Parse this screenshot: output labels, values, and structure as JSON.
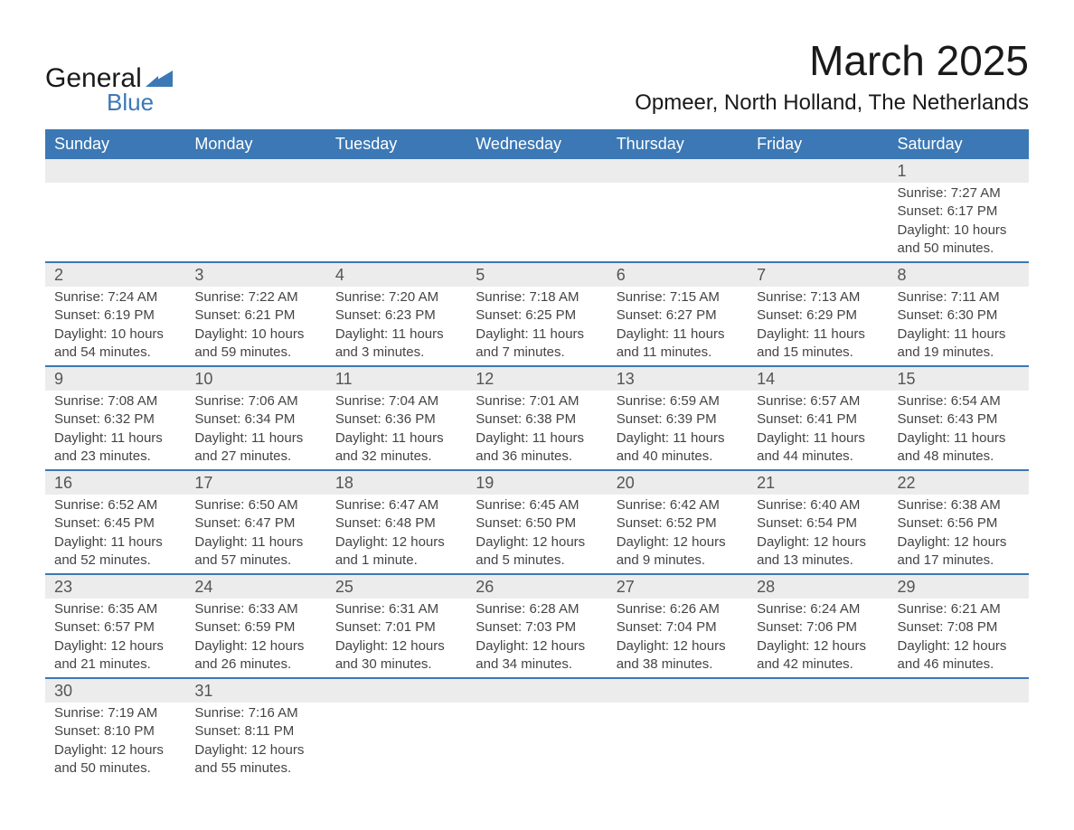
{
  "brand": {
    "name1": "General",
    "name2": "Blue",
    "logo_color": "#3b78b5",
    "text_color": "#1a1a1a"
  },
  "title": "March 2025",
  "location": "Opmeer, North Holland, The Netherlands",
  "colors": {
    "header_bg": "#3b78b5",
    "header_text": "#ffffff",
    "daybar_bg": "#ececec",
    "daybar_border": "#3b78b5",
    "body_text": "#444444",
    "page_bg": "#ffffff"
  },
  "day_headers": [
    "Sunday",
    "Monday",
    "Tuesday",
    "Wednesday",
    "Thursday",
    "Friday",
    "Saturday"
  ],
  "weeks": [
    [
      null,
      null,
      null,
      null,
      null,
      null,
      {
        "n": "1",
        "sunrise": "Sunrise: 7:27 AM",
        "sunset": "Sunset: 6:17 PM",
        "dl1": "Daylight: 10 hours",
        "dl2": "and 50 minutes."
      }
    ],
    [
      {
        "n": "2",
        "sunrise": "Sunrise: 7:24 AM",
        "sunset": "Sunset: 6:19 PM",
        "dl1": "Daylight: 10 hours",
        "dl2": "and 54 minutes."
      },
      {
        "n": "3",
        "sunrise": "Sunrise: 7:22 AM",
        "sunset": "Sunset: 6:21 PM",
        "dl1": "Daylight: 10 hours",
        "dl2": "and 59 minutes."
      },
      {
        "n": "4",
        "sunrise": "Sunrise: 7:20 AM",
        "sunset": "Sunset: 6:23 PM",
        "dl1": "Daylight: 11 hours",
        "dl2": "and 3 minutes."
      },
      {
        "n": "5",
        "sunrise": "Sunrise: 7:18 AM",
        "sunset": "Sunset: 6:25 PM",
        "dl1": "Daylight: 11 hours",
        "dl2": "and 7 minutes."
      },
      {
        "n": "6",
        "sunrise": "Sunrise: 7:15 AM",
        "sunset": "Sunset: 6:27 PM",
        "dl1": "Daylight: 11 hours",
        "dl2": "and 11 minutes."
      },
      {
        "n": "7",
        "sunrise": "Sunrise: 7:13 AM",
        "sunset": "Sunset: 6:29 PM",
        "dl1": "Daylight: 11 hours",
        "dl2": "and 15 minutes."
      },
      {
        "n": "8",
        "sunrise": "Sunrise: 7:11 AM",
        "sunset": "Sunset: 6:30 PM",
        "dl1": "Daylight: 11 hours",
        "dl2": "and 19 minutes."
      }
    ],
    [
      {
        "n": "9",
        "sunrise": "Sunrise: 7:08 AM",
        "sunset": "Sunset: 6:32 PM",
        "dl1": "Daylight: 11 hours",
        "dl2": "and 23 minutes."
      },
      {
        "n": "10",
        "sunrise": "Sunrise: 7:06 AM",
        "sunset": "Sunset: 6:34 PM",
        "dl1": "Daylight: 11 hours",
        "dl2": "and 27 minutes."
      },
      {
        "n": "11",
        "sunrise": "Sunrise: 7:04 AM",
        "sunset": "Sunset: 6:36 PM",
        "dl1": "Daylight: 11 hours",
        "dl2": "and 32 minutes."
      },
      {
        "n": "12",
        "sunrise": "Sunrise: 7:01 AM",
        "sunset": "Sunset: 6:38 PM",
        "dl1": "Daylight: 11 hours",
        "dl2": "and 36 minutes."
      },
      {
        "n": "13",
        "sunrise": "Sunrise: 6:59 AM",
        "sunset": "Sunset: 6:39 PM",
        "dl1": "Daylight: 11 hours",
        "dl2": "and 40 minutes."
      },
      {
        "n": "14",
        "sunrise": "Sunrise: 6:57 AM",
        "sunset": "Sunset: 6:41 PM",
        "dl1": "Daylight: 11 hours",
        "dl2": "and 44 minutes."
      },
      {
        "n": "15",
        "sunrise": "Sunrise: 6:54 AM",
        "sunset": "Sunset: 6:43 PM",
        "dl1": "Daylight: 11 hours",
        "dl2": "and 48 minutes."
      }
    ],
    [
      {
        "n": "16",
        "sunrise": "Sunrise: 6:52 AM",
        "sunset": "Sunset: 6:45 PM",
        "dl1": "Daylight: 11 hours",
        "dl2": "and 52 minutes."
      },
      {
        "n": "17",
        "sunrise": "Sunrise: 6:50 AM",
        "sunset": "Sunset: 6:47 PM",
        "dl1": "Daylight: 11 hours",
        "dl2": "and 57 minutes."
      },
      {
        "n": "18",
        "sunrise": "Sunrise: 6:47 AM",
        "sunset": "Sunset: 6:48 PM",
        "dl1": "Daylight: 12 hours",
        "dl2": "and 1 minute."
      },
      {
        "n": "19",
        "sunrise": "Sunrise: 6:45 AM",
        "sunset": "Sunset: 6:50 PM",
        "dl1": "Daylight: 12 hours",
        "dl2": "and 5 minutes."
      },
      {
        "n": "20",
        "sunrise": "Sunrise: 6:42 AM",
        "sunset": "Sunset: 6:52 PM",
        "dl1": "Daylight: 12 hours",
        "dl2": "and 9 minutes."
      },
      {
        "n": "21",
        "sunrise": "Sunrise: 6:40 AM",
        "sunset": "Sunset: 6:54 PM",
        "dl1": "Daylight: 12 hours",
        "dl2": "and 13 minutes."
      },
      {
        "n": "22",
        "sunrise": "Sunrise: 6:38 AM",
        "sunset": "Sunset: 6:56 PM",
        "dl1": "Daylight: 12 hours",
        "dl2": "and 17 minutes."
      }
    ],
    [
      {
        "n": "23",
        "sunrise": "Sunrise: 6:35 AM",
        "sunset": "Sunset: 6:57 PM",
        "dl1": "Daylight: 12 hours",
        "dl2": "and 21 minutes."
      },
      {
        "n": "24",
        "sunrise": "Sunrise: 6:33 AM",
        "sunset": "Sunset: 6:59 PM",
        "dl1": "Daylight: 12 hours",
        "dl2": "and 26 minutes."
      },
      {
        "n": "25",
        "sunrise": "Sunrise: 6:31 AM",
        "sunset": "Sunset: 7:01 PM",
        "dl1": "Daylight: 12 hours",
        "dl2": "and 30 minutes."
      },
      {
        "n": "26",
        "sunrise": "Sunrise: 6:28 AM",
        "sunset": "Sunset: 7:03 PM",
        "dl1": "Daylight: 12 hours",
        "dl2": "and 34 minutes."
      },
      {
        "n": "27",
        "sunrise": "Sunrise: 6:26 AM",
        "sunset": "Sunset: 7:04 PM",
        "dl1": "Daylight: 12 hours",
        "dl2": "and 38 minutes."
      },
      {
        "n": "28",
        "sunrise": "Sunrise: 6:24 AM",
        "sunset": "Sunset: 7:06 PM",
        "dl1": "Daylight: 12 hours",
        "dl2": "and 42 minutes."
      },
      {
        "n": "29",
        "sunrise": "Sunrise: 6:21 AM",
        "sunset": "Sunset: 7:08 PM",
        "dl1": "Daylight: 12 hours",
        "dl2": "and 46 minutes."
      }
    ],
    [
      {
        "n": "30",
        "sunrise": "Sunrise: 7:19 AM",
        "sunset": "Sunset: 8:10 PM",
        "dl1": "Daylight: 12 hours",
        "dl2": "and 50 minutes."
      },
      {
        "n": "31",
        "sunrise": "Sunrise: 7:16 AM",
        "sunset": "Sunset: 8:11 PM",
        "dl1": "Daylight: 12 hours",
        "dl2": "and 55 minutes."
      },
      null,
      null,
      null,
      null,
      null
    ]
  ]
}
